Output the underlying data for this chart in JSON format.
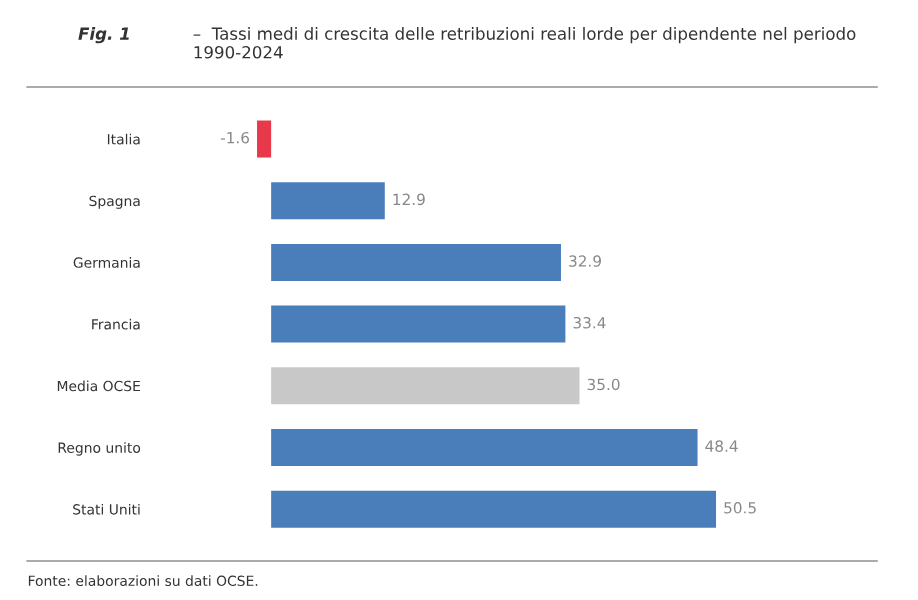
{
  "chart_data": {
    "type": "bar",
    "orientation": "horizontal",
    "title": "Fig. 1",
    "subtitle": "–  Tassi medi di crescita delle retribuzioni reali lorde per dipendente nel periodo 1990-2024",
    "categories": [
      "Italia",
      "Spagna",
      "Germania",
      "Francia",
      "Media OCSE",
      "Regno unito",
      "Stati Uniti"
    ],
    "values": [
      -1.6,
      12.9,
      32.9,
      33.4,
      35.0,
      48.4,
      50.5
    ],
    "value_labels": [
      "-1.6",
      "12.9",
      "32.9",
      "33.4",
      "35.0",
      "48.4",
      "50.5"
    ],
    "colors": [
      "#e8394a",
      "#4a7ebb",
      "#4a7ebb",
      "#4a7ebb",
      "#c8c8c8",
      "#4a7ebb",
      "#4a7ebb"
    ],
    "tick_labels": "y",
    "grid": false,
    "annotations": [
      "Fonte: elaborazioni su dati OCSE."
    ]
  }
}
